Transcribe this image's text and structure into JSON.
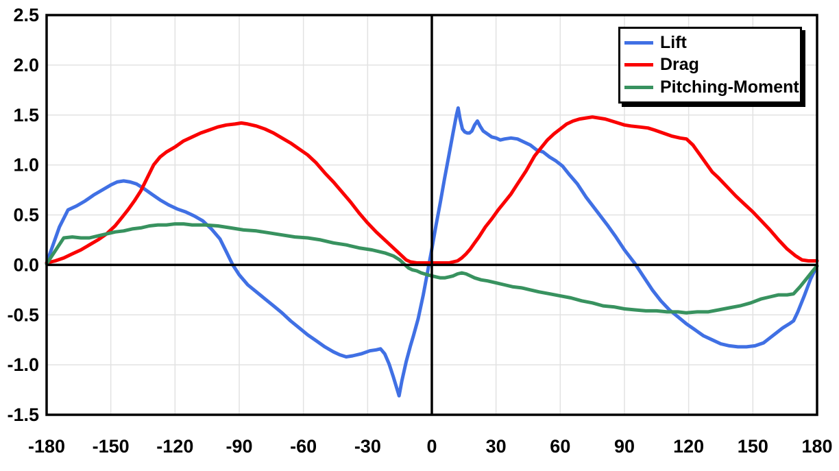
{
  "chart_data": {
    "type": "line",
    "title": "",
    "xlabel": "",
    "ylabel": "",
    "x_axis": {
      "min": -180,
      "max": 180,
      "ticks": [
        -180,
        -150,
        -120,
        -90,
        -60,
        -30,
        0,
        30,
        60,
        90,
        120,
        150,
        180
      ]
    },
    "y_axis": {
      "min": -1.5,
      "max": 2.5,
      "ticks": [
        -1.5,
        -1.0,
        -0.5,
        0.0,
        0.5,
        1.0,
        1.5,
        2.0,
        2.5
      ],
      "tick_decimals": 1
    },
    "grid": {
      "show": true,
      "color": "#E2E2E2"
    },
    "zero_lines": {
      "show": true,
      "color": "#000000"
    },
    "frame_color": "#000000",
    "background": "#FFFFFF",
    "legend": {
      "position": "top-right",
      "border": true,
      "shadow": true
    },
    "series": [
      {
        "name": "Lift",
        "color": "#4070E4",
        "points": [
          [
            -180,
            0.02
          ],
          [
            -177,
            0.2
          ],
          [
            -174,
            0.38
          ],
          [
            -170,
            0.55
          ],
          [
            -166,
            0.59
          ],
          [
            -162,
            0.64
          ],
          [
            -158,
            0.7
          ],
          [
            -154,
            0.75
          ],
          [
            -150,
            0.8
          ],
          [
            -147,
            0.83
          ],
          [
            -144,
            0.84
          ],
          [
            -141,
            0.83
          ],
          [
            -138,
            0.81
          ],
          [
            -135,
            0.77
          ],
          [
            -131,
            0.71
          ],
          [
            -127,
            0.65
          ],
          [
            -123,
            0.6
          ],
          [
            -119,
            0.56
          ],
          [
            -115,
            0.53
          ],
          [
            -111,
            0.49
          ],
          [
            -107,
            0.44
          ],
          [
            -103,
            0.36
          ],
          [
            -99,
            0.26
          ],
          [
            -96,
            0.13
          ],
          [
            -93,
            0.0
          ],
          [
            -90,
            -0.1
          ],
          [
            -86,
            -0.2
          ],
          [
            -82,
            -0.27
          ],
          [
            -78,
            -0.34
          ],
          [
            -74,
            -0.41
          ],
          [
            -70,
            -0.48
          ],
          [
            -66,
            -0.56
          ],
          [
            -62,
            -0.63
          ],
          [
            -58,
            -0.7
          ],
          [
            -54,
            -0.76
          ],
          [
            -50,
            -0.82
          ],
          [
            -46,
            -0.87
          ],
          [
            -43,
            -0.9
          ],
          [
            -40,
            -0.92
          ],
          [
            -37,
            -0.91
          ],
          [
            -33,
            -0.89
          ],
          [
            -29,
            -0.86
          ],
          [
            -26,
            -0.85
          ],
          [
            -24,
            -0.84
          ],
          [
            -22,
            -0.89
          ],
          [
            -20,
            -0.99
          ],
          [
            -18,
            -1.12
          ],
          [
            -16,
            -1.26
          ],
          [
            -15.3,
            -1.31
          ],
          [
            -14,
            -1.16
          ],
          [
            -12,
            -0.97
          ],
          [
            -10,
            -0.81
          ],
          [
            -8.6,
            -0.71
          ],
          [
            -6.4,
            -0.54
          ],
          [
            -4,
            -0.3
          ],
          [
            -2,
            -0.07
          ],
          [
            0,
            0.16
          ],
          [
            2,
            0.4
          ],
          [
            4,
            0.63
          ],
          [
            6,
            0.87
          ],
          [
            8,
            1.1
          ],
          [
            10,
            1.33
          ],
          [
            11.5,
            1.5
          ],
          [
            12.3,
            1.57
          ],
          [
            13.2,
            1.46
          ],
          [
            14.3,
            1.36
          ],
          [
            15.4,
            1.33
          ],
          [
            16.5,
            1.32
          ],
          [
            17.6,
            1.32
          ],
          [
            18.7,
            1.34
          ],
          [
            20,
            1.4
          ],
          [
            21.3,
            1.44
          ],
          [
            22.5,
            1.39
          ],
          [
            24,
            1.34
          ],
          [
            26,
            1.31
          ],
          [
            28,
            1.28
          ],
          [
            30,
            1.27
          ],
          [
            32,
            1.25
          ],
          [
            34,
            1.26
          ],
          [
            37,
            1.27
          ],
          [
            40,
            1.26
          ],
          [
            43,
            1.23
          ],
          [
            46,
            1.2
          ],
          [
            49,
            1.15
          ],
          [
            52,
            1.13
          ],
          [
            55,
            1.08
          ],
          [
            58,
            1.04
          ],
          [
            61,
            0.99
          ],
          [
            64,
            0.91
          ],
          [
            68,
            0.81
          ],
          [
            72,
            0.68
          ],
          [
            77,
            0.54
          ],
          [
            82,
            0.4
          ],
          [
            86,
            0.28
          ],
          [
            90,
            0.15
          ],
          [
            95,
            0.01
          ],
          [
            99,
            -0.12
          ],
          [
            103,
            -0.25
          ],
          [
            107,
            -0.36
          ],
          [
            111,
            -0.45
          ],
          [
            115,
            -0.52
          ],
          [
            119,
            -0.59
          ],
          [
            123,
            -0.65
          ],
          [
            127,
            -0.71
          ],
          [
            131,
            -0.75
          ],
          [
            135,
            -0.79
          ],
          [
            139,
            -0.81
          ],
          [
            143,
            -0.82
          ],
          [
            147,
            -0.82
          ],
          [
            151,
            -0.81
          ],
          [
            155,
            -0.78
          ],
          [
            158,
            -0.73
          ],
          [
            161,
            -0.68
          ],
          [
            164,
            -0.63
          ],
          [
            167,
            -0.59
          ],
          [
            169,
            -0.56
          ],
          [
            171,
            -0.47
          ],
          [
            174,
            -0.31
          ],
          [
            177,
            -0.14
          ],
          [
            180,
            -0.01
          ]
        ]
      },
      {
        "name": "Drag",
        "color": "#FA0000",
        "points": [
          [
            -180,
            0.02
          ],
          [
            -176,
            0.04
          ],
          [
            -172,
            0.07
          ],
          [
            -168,
            0.11
          ],
          [
            -164,
            0.15
          ],
          [
            -160,
            0.2
          ],
          [
            -156,
            0.25
          ],
          [
            -152,
            0.31
          ],
          [
            -148,
            0.39
          ],
          [
            -145,
            0.47
          ],
          [
            -142,
            0.55
          ],
          [
            -139,
            0.64
          ],
          [
            -136,
            0.74
          ],
          [
            -133,
            0.87
          ],
          [
            -130,
            1.0
          ],
          [
            -127,
            1.08
          ],
          [
            -124,
            1.13
          ],
          [
            -120,
            1.18
          ],
          [
            -116,
            1.24
          ],
          [
            -112,
            1.28
          ],
          [
            -108,
            1.32
          ],
          [
            -104,
            1.35
          ],
          [
            -100,
            1.38
          ],
          [
            -96,
            1.4
          ],
          [
            -92,
            1.41
          ],
          [
            -89,
            1.42
          ],
          [
            -86,
            1.41
          ],
          [
            -82,
            1.39
          ],
          [
            -78,
            1.36
          ],
          [
            -74,
            1.32
          ],
          [
            -70,
            1.27
          ],
          [
            -66,
            1.22
          ],
          [
            -62,
            1.16
          ],
          [
            -58,
            1.1
          ],
          [
            -54,
            1.02
          ],
          [
            -50,
            0.92
          ],
          [
            -46,
            0.83
          ],
          [
            -42,
            0.73
          ],
          [
            -38,
            0.63
          ],
          [
            -34,
            0.52
          ],
          [
            -30,
            0.42
          ],
          [
            -26,
            0.33
          ],
          [
            -22,
            0.25
          ],
          [
            -18,
            0.17
          ],
          [
            -15,
            0.11
          ],
          [
            -12,
            0.05
          ],
          [
            -10,
            0.03
          ],
          [
            -7,
            0.02
          ],
          [
            -3,
            0.02
          ],
          [
            0,
            0.02
          ],
          [
            3,
            0.02
          ],
          [
            6,
            0.02
          ],
          [
            8,
            0.02
          ],
          [
            10,
            0.03
          ],
          [
            12,
            0.04
          ],
          [
            14,
            0.07
          ],
          [
            16,
            0.11
          ],
          [
            18,
            0.16
          ],
          [
            20,
            0.22
          ],
          [
            22,
            0.28
          ],
          [
            25,
            0.38
          ],
          [
            28,
            0.46
          ],
          [
            31,
            0.55
          ],
          [
            34,
            0.63
          ],
          [
            37,
            0.71
          ],
          [
            40,
            0.81
          ],
          [
            44,
            0.94
          ],
          [
            48,
            1.09
          ],
          [
            51,
            1.17
          ],
          [
            54,
            1.25
          ],
          [
            57,
            1.31
          ],
          [
            60,
            1.36
          ],
          [
            63,
            1.41
          ],
          [
            66,
            1.44
          ],
          [
            69,
            1.46
          ],
          [
            72,
            1.47
          ],
          [
            75,
            1.48
          ],
          [
            78,
            1.47
          ],
          [
            81,
            1.46
          ],
          [
            84,
            1.44
          ],
          [
            87,
            1.42
          ],
          [
            90,
            1.4
          ],
          [
            93,
            1.39
          ],
          [
            97,
            1.38
          ],
          [
            101,
            1.37
          ],
          [
            104,
            1.35
          ],
          [
            108,
            1.32
          ],
          [
            112,
            1.29
          ],
          [
            116,
            1.27
          ],
          [
            119,
            1.26
          ],
          [
            122,
            1.2
          ],
          [
            125,
            1.11
          ],
          [
            128,
            1.02
          ],
          [
            131,
            0.93
          ],
          [
            134,
            0.87
          ],
          [
            138,
            0.78
          ],
          [
            142,
            0.69
          ],
          [
            146,
            0.61
          ],
          [
            150,
            0.53
          ],
          [
            154,
            0.44
          ],
          [
            158,
            0.35
          ],
          [
            162,
            0.25
          ],
          [
            166,
            0.16
          ],
          [
            170,
            0.09
          ],
          [
            173,
            0.05
          ],
          [
            176,
            0.04
          ],
          [
            180,
            0.04
          ]
        ]
      },
      {
        "name": "Pitching-Moment",
        "color": "#38925F",
        "points": [
          [
            -180,
            0.01
          ],
          [
            -176,
            0.14
          ],
          [
            -172,
            0.27
          ],
          [
            -168,
            0.28
          ],
          [
            -164,
            0.27
          ],
          [
            -160,
            0.27
          ],
          [
            -156,
            0.29
          ],
          [
            -152,
            0.31
          ],
          [
            -148,
            0.33
          ],
          [
            -144,
            0.34
          ],
          [
            -140,
            0.36
          ],
          [
            -136,
            0.37
          ],
          [
            -132,
            0.39
          ],
          [
            -128,
            0.4
          ],
          [
            -124,
            0.4
          ],
          [
            -120,
            0.41
          ],
          [
            -116,
            0.41
          ],
          [
            -112,
            0.4
          ],
          [
            -106,
            0.4
          ],
          [
            -100,
            0.39
          ],
          [
            -94,
            0.37
          ],
          [
            -88,
            0.35
          ],
          [
            -82,
            0.34
          ],
          [
            -76,
            0.32
          ],
          [
            -70,
            0.3
          ],
          [
            -64,
            0.28
          ],
          [
            -58,
            0.27
          ],
          [
            -52,
            0.25
          ],
          [
            -46,
            0.22
          ],
          [
            -40,
            0.2
          ],
          [
            -34,
            0.17
          ],
          [
            -28,
            0.15
          ],
          [
            -22,
            0.12
          ],
          [
            -18,
            0.09
          ],
          [
            -15,
            0.05
          ],
          [
            -13,
            0.01
          ],
          [
            -11,
            -0.03
          ],
          [
            -9,
            -0.05
          ],
          [
            -7,
            -0.06
          ],
          [
            -5,
            -0.08
          ],
          [
            -2,
            -0.1
          ],
          [
            0,
            -0.11
          ],
          [
            2,
            -0.12
          ],
          [
            4,
            -0.13
          ],
          [
            6,
            -0.13
          ],
          [
            8,
            -0.12
          ],
          [
            10,
            -0.11
          ],
          [
            12,
            -0.09
          ],
          [
            14,
            -0.08
          ],
          [
            16,
            -0.09
          ],
          [
            18,
            -0.11
          ],
          [
            20,
            -0.13
          ],
          [
            23,
            -0.15
          ],
          [
            26,
            -0.16
          ],
          [
            30,
            -0.18
          ],
          [
            34,
            -0.2
          ],
          [
            38,
            -0.22
          ],
          [
            42,
            -0.23
          ],
          [
            46,
            -0.25
          ],
          [
            50,
            -0.27
          ],
          [
            55,
            -0.29
          ],
          [
            60,
            -0.31
          ],
          [
            65,
            -0.33
          ],
          [
            70,
            -0.36
          ],
          [
            75,
            -0.38
          ],
          [
            80,
            -0.41
          ],
          [
            85,
            -0.42
          ],
          [
            90,
            -0.44
          ],
          [
            95,
            -0.45
          ],
          [
            100,
            -0.46
          ],
          [
            105,
            -0.46
          ],
          [
            110,
            -0.47
          ],
          [
            115,
            -0.47
          ],
          [
            119,
            -0.48
          ],
          [
            124,
            -0.47
          ],
          [
            129,
            -0.47
          ],
          [
            134,
            -0.45
          ],
          [
            139,
            -0.43
          ],
          [
            144,
            -0.41
          ],
          [
            149,
            -0.38
          ],
          [
            154,
            -0.34
          ],
          [
            158,
            -0.32
          ],
          [
            162,
            -0.3
          ],
          [
            166,
            -0.3
          ],
          [
            169,
            -0.29
          ],
          [
            172,
            -0.22
          ],
          [
            175,
            -0.14
          ],
          [
            178,
            -0.06
          ],
          [
            180,
            -0.01
          ]
        ]
      }
    ]
  }
}
